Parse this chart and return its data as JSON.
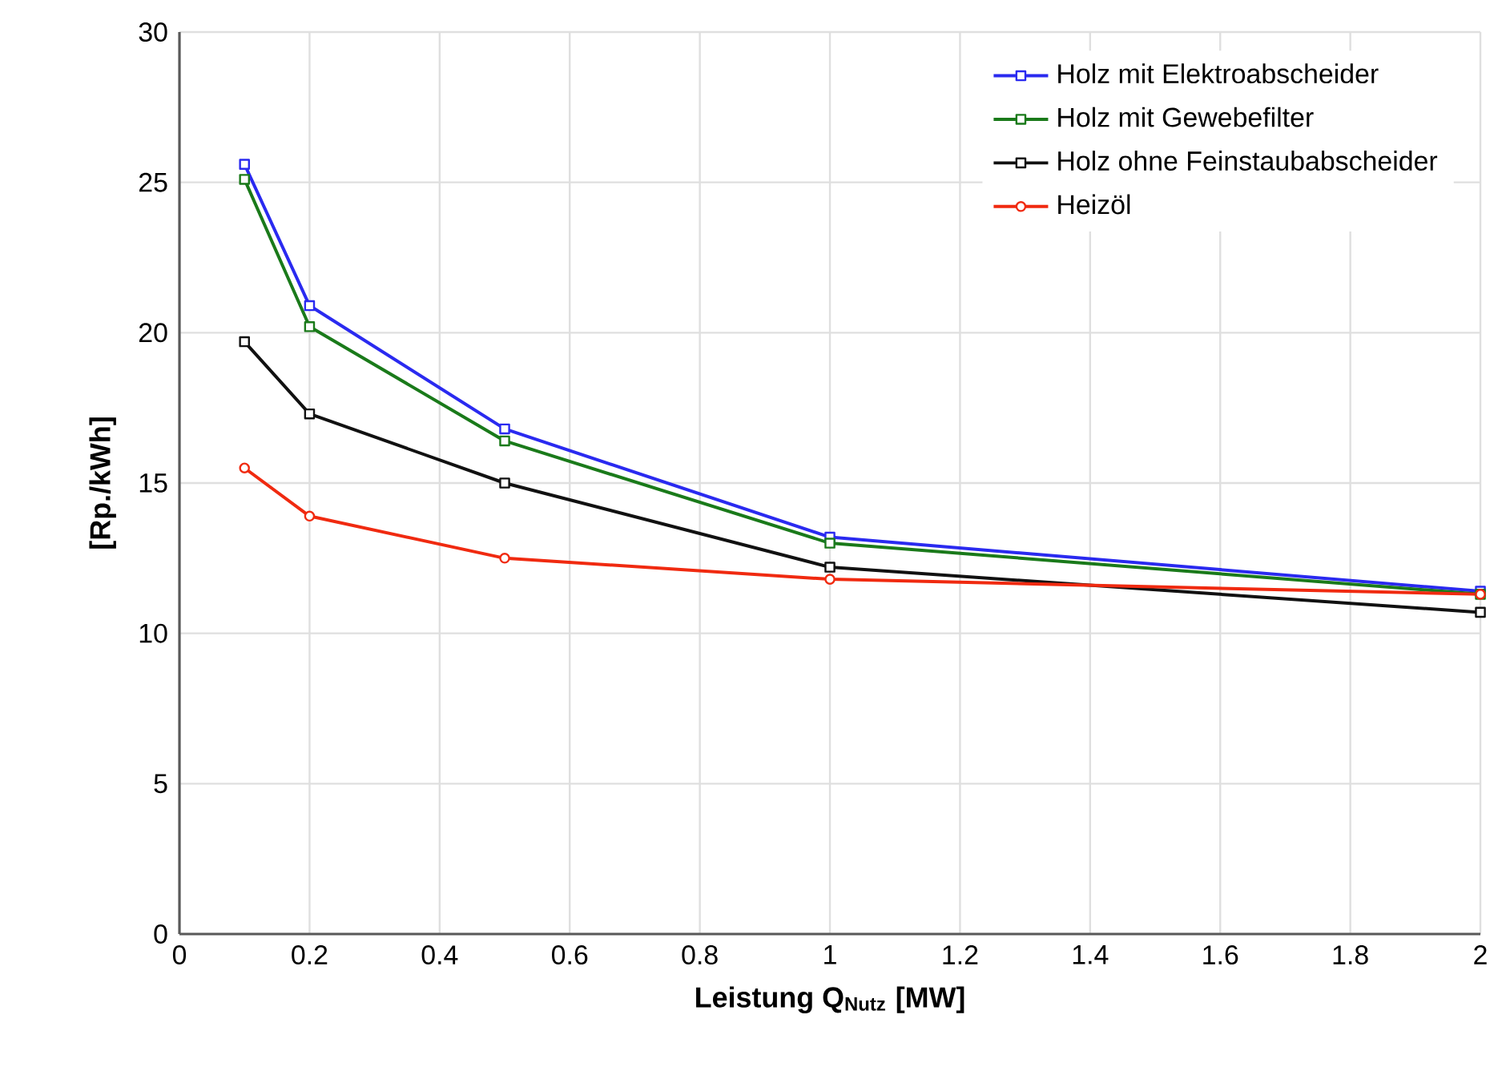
{
  "chart_data": {
    "type": "line",
    "xlabel": "Leistung Q$_{Nutz}$  [MW]",
    "ylabel": "[Rp./kWh]",
    "x": [
      0.1,
      0.2,
      0.5,
      1,
      2
    ],
    "series": [
      {
        "name": "Holz mit Elektroabscheider",
        "color": "#2a2af0",
        "marker": "square",
        "values": [
          25.6,
          20.9,
          16.8,
          13.2,
          11.4
        ]
      },
      {
        "name": "Holz mit Gewebefilter",
        "color": "#1a7a1a",
        "marker": "square",
        "values": [
          25.1,
          20.2,
          16.4,
          13.0,
          11.3
        ]
      },
      {
        "name": "Holz ohne Feinstaubabscheider",
        "color": "#111111",
        "marker": "square",
        "values": [
          19.7,
          17.3,
          15.0,
          12.2,
          10.7
        ]
      },
      {
        "name": "Heizöl",
        "color": "#f02a10",
        "marker": "circle",
        "values": [
          15.5,
          13.9,
          12.5,
          11.8,
          11.3
        ]
      }
    ],
    "xlim": [
      0,
      2
    ],
    "xticks": [
      0,
      0.2,
      0.4,
      0.6,
      0.8,
      1,
      1.2,
      1.4,
      1.6,
      1.8,
      2
    ],
    "ylim": [
      0,
      30
    ],
    "yticks": [
      0,
      5,
      10,
      15,
      20,
      25,
      30
    ],
    "grid": true,
    "legend": "top right",
    "line_style": "solid"
  }
}
